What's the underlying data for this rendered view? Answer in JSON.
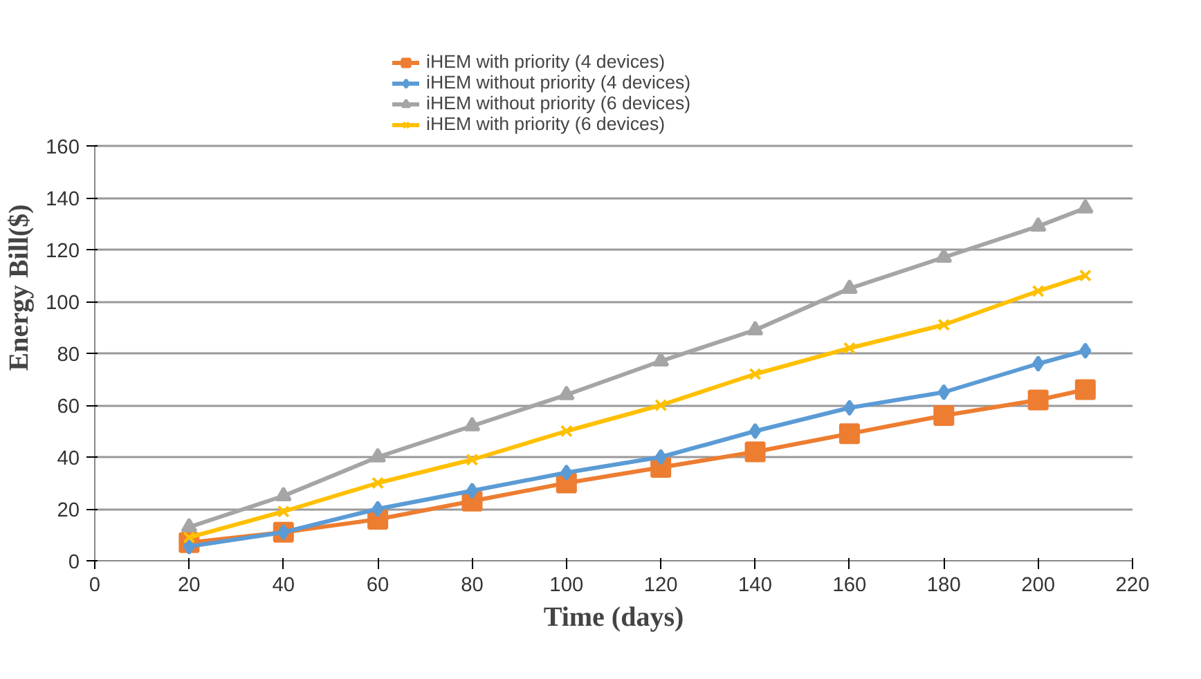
{
  "chart_data": {
    "type": "line",
    "xlabel": "Time (days)",
    "ylabel": "Energy Bill($)",
    "x": [
      20,
      40,
      60,
      80,
      100,
      120,
      140,
      160,
      180,
      200,
      210
    ],
    "xlim": [
      0,
      220
    ],
    "xticks": [
      0,
      20,
      40,
      60,
      80,
      100,
      120,
      140,
      160,
      180,
      200,
      220
    ],
    "ylim": [
      0,
      160
    ],
    "yticks": [
      0,
      20,
      40,
      60,
      80,
      100,
      120,
      140,
      160
    ],
    "grid": "y",
    "legend": "top",
    "series": [
      {
        "name": "iHEM with priority (4 devices)",
        "color": "#ed7d31",
        "marker": "square",
        "values": [
          7,
          11,
          16,
          23,
          30,
          36,
          42,
          49,
          56,
          62,
          66
        ]
      },
      {
        "name": "iHEM without priority (4 devices)",
        "color": "#5b9bd5",
        "marker": "diamond",
        "values": [
          5.5,
          11,
          20,
          27,
          34,
          40,
          50,
          59,
          65,
          76,
          81
        ]
      },
      {
        "name": "iHEM without priority (6 devices)",
        "color": "#a5a5a5",
        "marker": "triangle",
        "values": [
          13,
          25,
          40,
          52,
          64,
          77,
          89,
          105,
          117,
          129,
          136
        ]
      },
      {
        "name": "iHEM with priority (6 devices)",
        "color": "#ffc000",
        "marker": "cross",
        "values": [
          9,
          19,
          30,
          39,
          50,
          60,
          72,
          82,
          91,
          104,
          110
        ]
      }
    ]
  }
}
